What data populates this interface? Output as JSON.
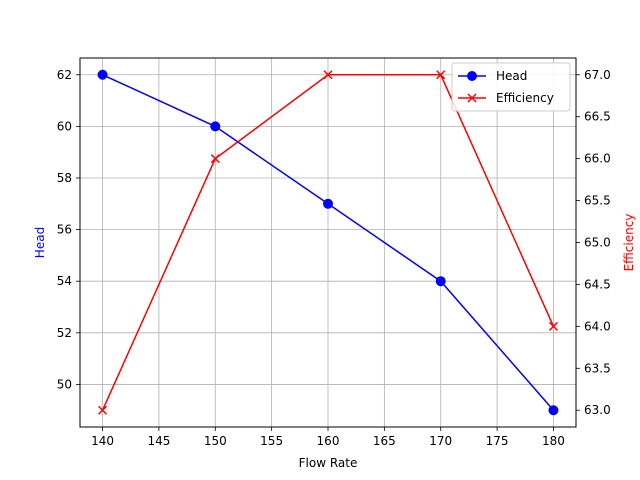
{
  "chart_data": {
    "type": "line",
    "x": [
      140,
      150,
      160,
      170,
      180
    ],
    "xlabel": "Flow Rate",
    "xlim": [
      138,
      182
    ],
    "xticks": [
      140,
      145,
      150,
      155,
      160,
      165,
      170,
      175,
      180
    ],
    "grid": true,
    "legend_position": "top-right",
    "series": [
      {
        "name": "Head",
        "axis": "left",
        "values": [
          62,
          60,
          57,
          54,
          49
        ],
        "color": "#0000ff",
        "marker": "circle"
      },
      {
        "name": "Efficiency",
        "axis": "right",
        "values": [
          63,
          66,
          67,
          67,
          64
        ],
        "color": "#ff0000",
        "marker": "x"
      }
    ],
    "y_left": {
      "label": "Head",
      "color": "#0000ff",
      "ylim": [
        48.35,
        62.65
      ],
      "ticks": [
        "50",
        "52",
        "54",
        "56",
        "58",
        "60",
        "62"
      ]
    },
    "y_right": {
      "label": "Efficiency",
      "color": "#ff0000",
      "ylim": [
        62.8,
        67.2
      ],
      "ticks": [
        "63.0",
        "63.5",
        "64.0",
        "64.5",
        "65.0",
        "65.5",
        "66.0",
        "66.5",
        "67.0"
      ]
    }
  }
}
